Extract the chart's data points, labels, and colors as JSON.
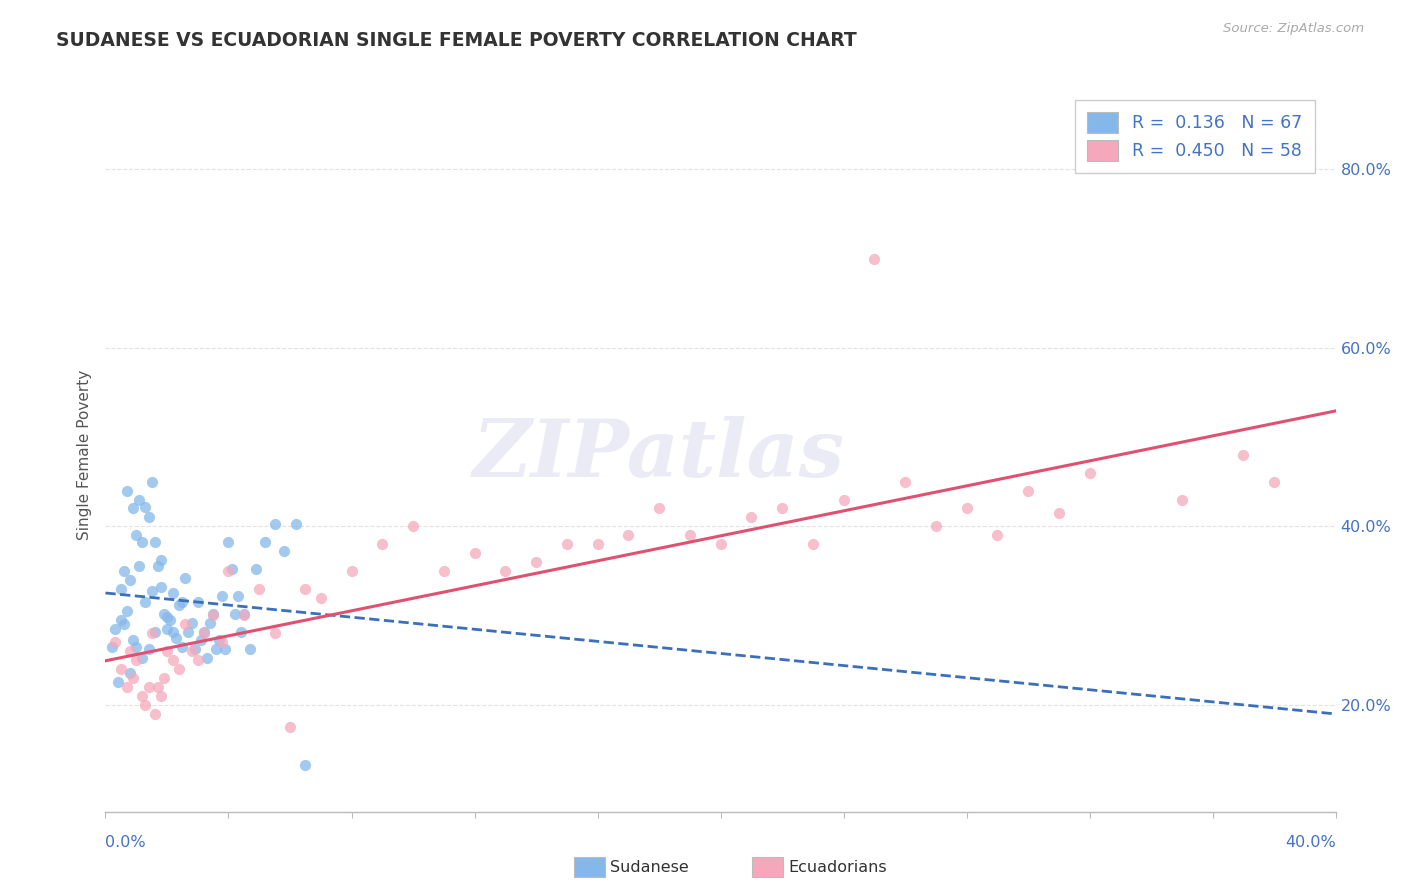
{
  "title": "SUDANESE VS ECUADORIAN SINGLE FEMALE POVERTY CORRELATION CHART",
  "source": "Source: ZipAtlas.com",
  "ylabel": "Single Female Poverty",
  "xlim": [
    0.0,
    0.4
  ],
  "ylim": [
    0.08,
    0.88
  ],
  "yticks": [
    0.2,
    0.4,
    0.6,
    0.8
  ],
  "ytick_labels": [
    "20.0%",
    "40.0%",
    "60.0%",
    "80.0%"
  ],
  "background_color": "#ffffff",
  "grid_color": "#e2e2e2",
  "blue_dot_color": "#85b8ea",
  "pink_dot_color": "#f5a8bc",
  "blue_line_color": "#3a6fba",
  "pink_line_color": "#e05070",
  "axis_text_color": "#4472c4",
  "title_color": "#333333",
  "legend_R1": "0.136",
  "legend_N1": "67",
  "legend_R2": "0.450",
  "legend_N2": "58",
  "sudanese_x": [
    0.002,
    0.003,
    0.004,
    0.005,
    0.005,
    0.006,
    0.006,
    0.007,
    0.007,
    0.008,
    0.008,
    0.009,
    0.009,
    0.01,
    0.01,
    0.011,
    0.011,
    0.012,
    0.012,
    0.013,
    0.013,
    0.014,
    0.014,
    0.015,
    0.015,
    0.016,
    0.016,
    0.017,
    0.018,
    0.018,
    0.019,
    0.02,
    0.02,
    0.021,
    0.022,
    0.022,
    0.023,
    0.024,
    0.025,
    0.025,
    0.026,
    0.027,
    0.028,
    0.029,
    0.03,
    0.031,
    0.032,
    0.033,
    0.034,
    0.035,
    0.036,
    0.037,
    0.038,
    0.039,
    0.04,
    0.041,
    0.042,
    0.043,
    0.044,
    0.045,
    0.047,
    0.049,
    0.052,
    0.055,
    0.058,
    0.062,
    0.065
  ],
  "sudanese_y": [
    0.265,
    0.285,
    0.225,
    0.33,
    0.295,
    0.35,
    0.29,
    0.305,
    0.44,
    0.34,
    0.235,
    0.42,
    0.272,
    0.39,
    0.265,
    0.43,
    0.355,
    0.382,
    0.252,
    0.422,
    0.315,
    0.41,
    0.262,
    0.45,
    0.328,
    0.382,
    0.282,
    0.355,
    0.362,
    0.332,
    0.302,
    0.298,
    0.285,
    0.295,
    0.282,
    0.325,
    0.275,
    0.312,
    0.315,
    0.265,
    0.342,
    0.282,
    0.292,
    0.262,
    0.315,
    0.272,
    0.282,
    0.252,
    0.292,
    0.302,
    0.262,
    0.272,
    0.322,
    0.262,
    0.382,
    0.352,
    0.302,
    0.322,
    0.282,
    0.302,
    0.262,
    0.352,
    0.382,
    0.402,
    0.372,
    0.402,
    0.132
  ],
  "ecuadorian_x": [
    0.003,
    0.005,
    0.007,
    0.008,
    0.009,
    0.01,
    0.012,
    0.013,
    0.014,
    0.015,
    0.016,
    0.017,
    0.018,
    0.019,
    0.02,
    0.022,
    0.024,
    0.026,
    0.028,
    0.03,
    0.032,
    0.035,
    0.038,
    0.04,
    0.045,
    0.05,
    0.055,
    0.06,
    0.065,
    0.07,
    0.08,
    0.09,
    0.1,
    0.11,
    0.12,
    0.14,
    0.16,
    0.18,
    0.2,
    0.22,
    0.24,
    0.26,
    0.28,
    0.3,
    0.32,
    0.35,
    0.38,
    0.25,
    0.37,
    0.15,
    0.13,
    0.17,
    0.19,
    0.21,
    0.23,
    0.27,
    0.29,
    0.31
  ],
  "ecuadorian_y": [
    0.27,
    0.24,
    0.22,
    0.26,
    0.23,
    0.25,
    0.21,
    0.2,
    0.22,
    0.28,
    0.19,
    0.22,
    0.21,
    0.23,
    0.26,
    0.25,
    0.24,
    0.29,
    0.26,
    0.25,
    0.28,
    0.3,
    0.27,
    0.35,
    0.3,
    0.33,
    0.28,
    0.175,
    0.33,
    0.32,
    0.35,
    0.38,
    0.4,
    0.35,
    0.37,
    0.36,
    0.38,
    0.42,
    0.38,
    0.42,
    0.43,
    0.45,
    0.42,
    0.44,
    0.46,
    0.43,
    0.45,
    0.7,
    0.48,
    0.38,
    0.35,
    0.39,
    0.39,
    0.41,
    0.38,
    0.4,
    0.39,
    0.415
  ],
  "watermark_text": "ZIPatlas",
  "watermark_color": "#ebebf5"
}
